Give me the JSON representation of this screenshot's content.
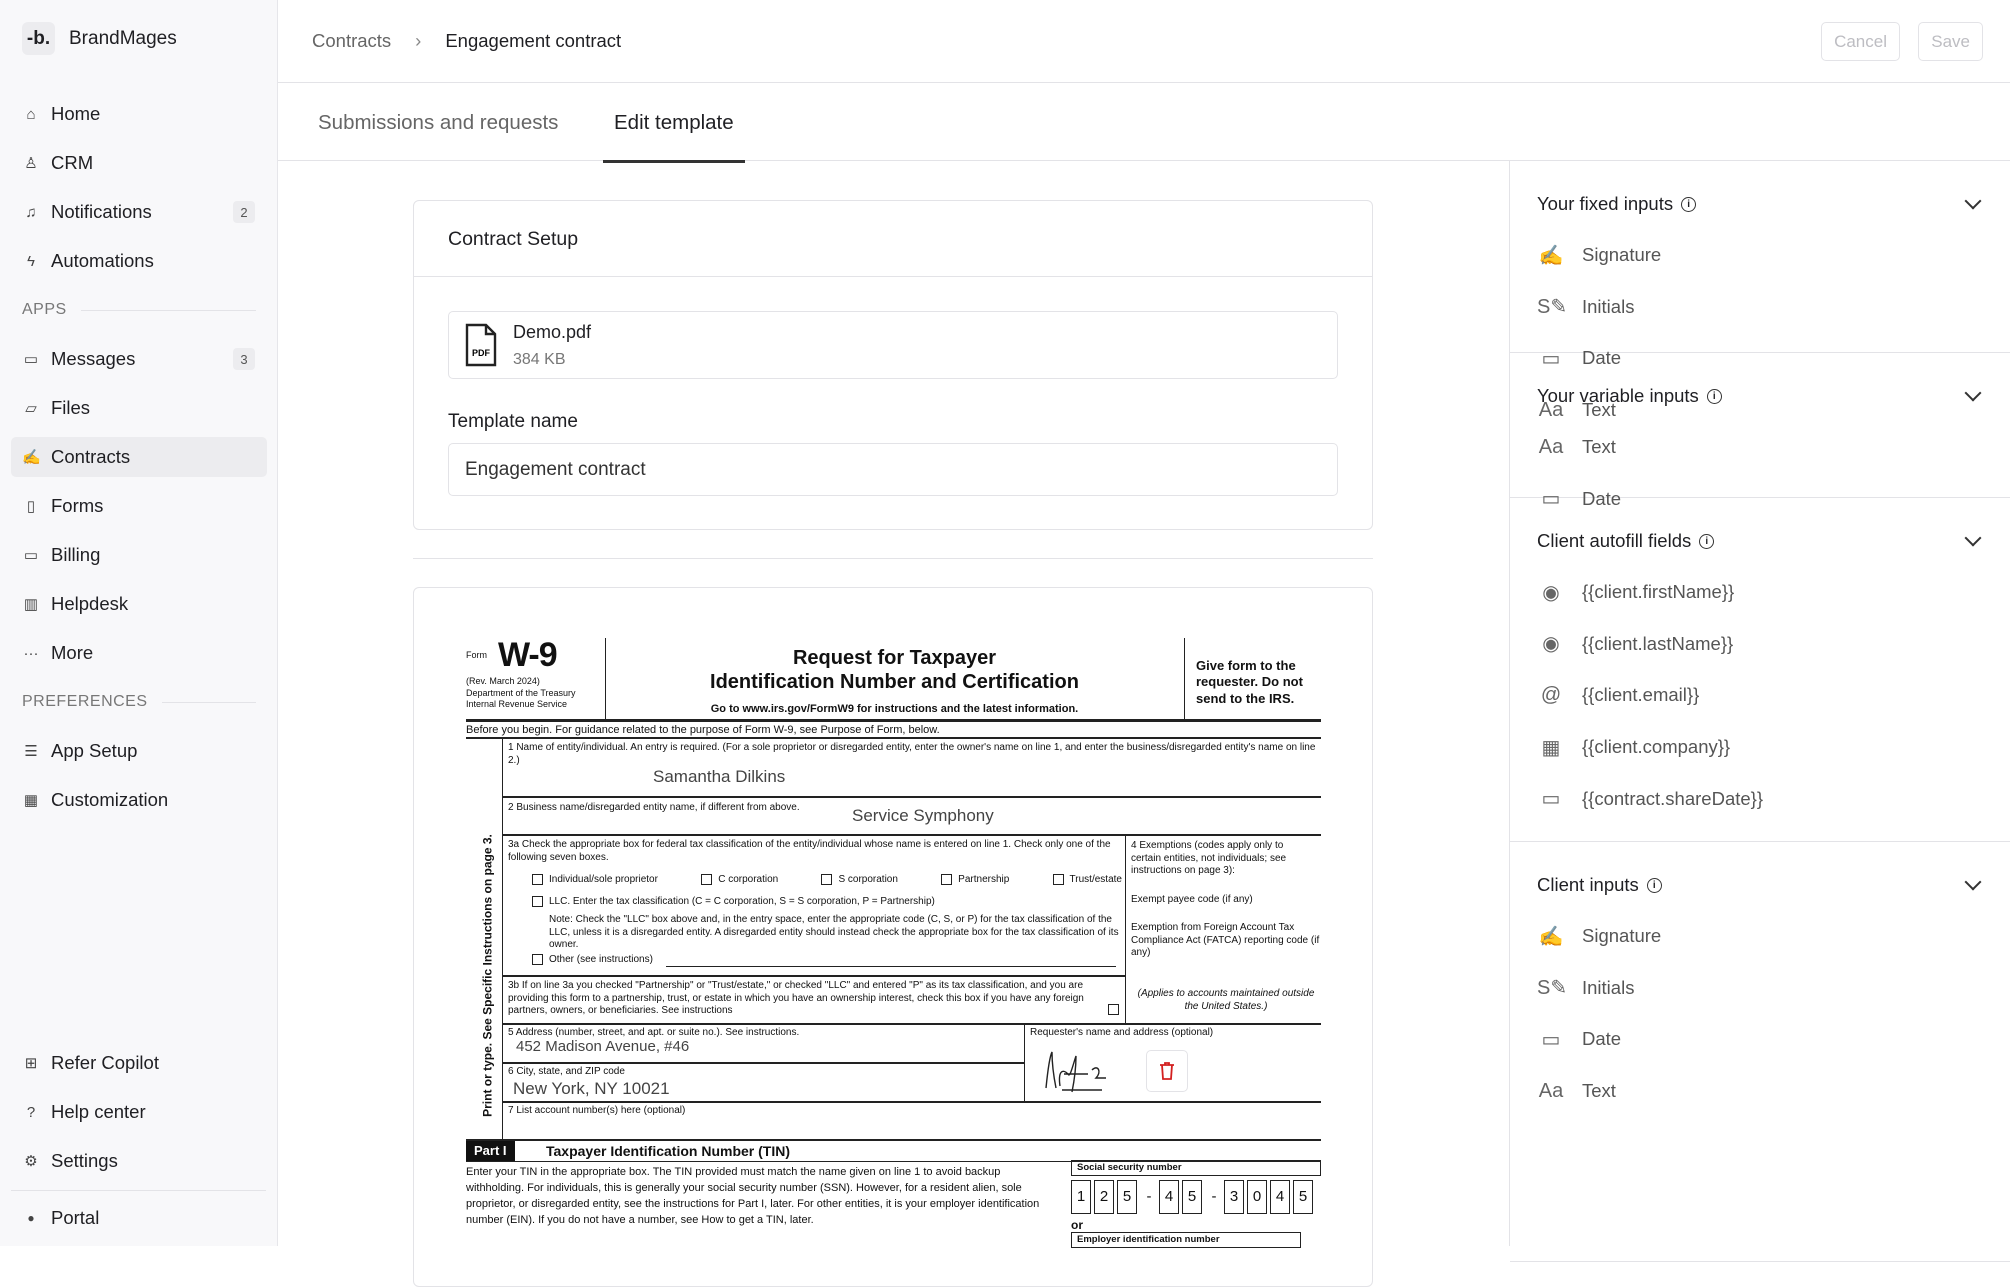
{
  "brand": {
    "logo": "-b.",
    "name": "BrandMages"
  },
  "sidebar": {
    "main": [
      {
        "label": "Home",
        "icon": "home-icon"
      },
      {
        "label": "CRM",
        "icon": "user-icon"
      },
      {
        "label": "Notifications",
        "icon": "bell-icon",
        "badge": "2"
      },
      {
        "label": "Automations",
        "icon": "bolt-icon"
      }
    ],
    "apps_label": "APPS",
    "apps": [
      {
        "label": "Messages",
        "icon": "message-icon",
        "badge": "3"
      },
      {
        "label": "Files",
        "icon": "folder-icon"
      },
      {
        "label": "Contracts",
        "icon": "contract-icon",
        "active": true
      },
      {
        "label": "Forms",
        "icon": "clipboard-icon"
      },
      {
        "label": "Billing",
        "icon": "card-icon"
      },
      {
        "label": "Helpdesk",
        "icon": "book-icon"
      },
      {
        "label": "More",
        "icon": "more-icon"
      }
    ],
    "prefs_label": "PREFERENCES",
    "prefs": [
      {
        "label": "App Setup",
        "icon": "sliders-icon"
      },
      {
        "label": "Customization",
        "icon": "grid-icon"
      }
    ],
    "bottom": [
      {
        "label": "Refer Copilot",
        "icon": "gift-icon"
      },
      {
        "label": "Help center",
        "icon": "help-icon"
      },
      {
        "label": "Settings",
        "icon": "gear-icon"
      }
    ],
    "portal": "Portal"
  },
  "header": {
    "breadcrumb": [
      "Contracts",
      "Engagement contract"
    ],
    "cancel": "Cancel",
    "save": "Save"
  },
  "tabs": [
    {
      "label": "Submissions and requests"
    },
    {
      "label": "Edit template",
      "active": true
    }
  ],
  "setup": {
    "title": "Contract Setup",
    "file_name": "Demo.pdf",
    "file_size": "384 KB",
    "file_badge": "PDF",
    "template_label": "Template name",
    "template_value": "Engagement contract"
  },
  "panel": {
    "fixed": {
      "title": "Your fixed inputs",
      "items": [
        "Signature",
        "Initials",
        "Date",
        "Text"
      ]
    },
    "variable": {
      "title": "Your variable inputs",
      "items": [
        "Text",
        "Date"
      ]
    },
    "autofill": {
      "title": "Client autofill fields",
      "items": [
        "{{client.firstName}}",
        "{{client.lastName}}",
        "{{client.email}}",
        "{{client.company}}",
        "{{contract.shareDate}}"
      ]
    },
    "client": {
      "title": "Client inputs",
      "items": [
        "Signature",
        "Initials",
        "Date",
        "Text"
      ]
    }
  },
  "document": {
    "form": "Form",
    "form_no": "W-9",
    "rev": "(Rev. March 2024)",
    "dept1": "Department of the Treasury",
    "dept2": "Internal Revenue Service",
    "title1": "Request for Taxpayer",
    "title2": "Identification Number and Certification",
    "goto": "Go to www.irs.gov/FormW9 for instructions and the latest information.",
    "give": "Give form to the requester. Do not send to the IRS.",
    "before": "Before you begin. For guidance related to the purpose of Form W-9, see Purpose of Form, below.",
    "side": "Print or type. See Specific Instructions on page 3.",
    "l1": "1   Name of entity/individual. An entry is required. (For a sole proprietor or disregarded entity, enter the owner's name on line 1, and enter the business/disregarded entity's name on line 2.)",
    "name": "Samantha Dilkins",
    "l2": "2   Business name/disregarded entity name, if different from above.",
    "business": "Service Symphony",
    "l3a": "3a  Check the appropriate box for federal tax classification of the entity/individual whose name is entered on line 1. Check only one of the following seven boxes.",
    "boxes": [
      "Individual/sole proprietor",
      "C corporation",
      "S corporation",
      "Partnership",
      "Trust/estate"
    ],
    "llc": "LLC. Enter the tax classification (C = C corporation, S = S corporation, P = Partnership)",
    "note": "Note: Check the \"LLC\" box above and, in the entry space, enter the appropriate code (C, S, or P) for the tax classification of the LLC, unless it is a disregarded entity. A disregarded entity should instead check the appropriate box for the tax classification of its owner.",
    "other": "Other (see instructions)",
    "l4": "4  Exemptions (codes apply only to certain entities, not individuals; see instructions on page 3):",
    "exempt": "Exempt payee code (if any)",
    "fatca": "Exemption from Foreign Account Tax Compliance Act (FATCA) reporting code (if any)",
    "applies": "(Applies to accounts maintained outside the United States.)",
    "l3b": "3b  If on line 3a you checked \"Partnership\" or \"Trust/estate,\" or checked \"LLC\" and entered \"P\" as its tax classification, and you are providing this form to a partnership, trust, or estate in which you have an ownership interest, check this box if you have any foreign partners, owners, or beneficiaries. See instructions",
    "l5": "5   Address (number, street, and apt. or suite no.). See instructions.",
    "address": "452 Madison Avenue, #46",
    "requester": "Requester's name and address (optional)",
    "l6": "6   City, state, and ZIP code",
    "city": "New York, NY 10021",
    "l7": "7   List account number(s) here (optional)",
    "part": "Part I",
    "part_title": "Taxpayer Identification Number (TIN)",
    "tin_text": "Enter your TIN in the appropriate box. The TIN provided must match the name given on line 1 to avoid backup withholding. For individuals, this is generally your social security number (SSN). However, for a resident alien, sole proprietor, or disregarded entity, see the instructions for Part I, later. For other entities, it is your employer identification number (EIN). If you do not have a number, see How to get a TIN, later.",
    "ssn_label": "Social security number",
    "ssn": [
      "1",
      "2",
      "5",
      "-",
      "4",
      "5",
      "-",
      "3",
      "0",
      "4",
      "5"
    ],
    "or": "or",
    "ein_label": "Employer identification number"
  },
  "colors": {
    "delete": "#d32020",
    "active_nav": "#ececef"
  }
}
